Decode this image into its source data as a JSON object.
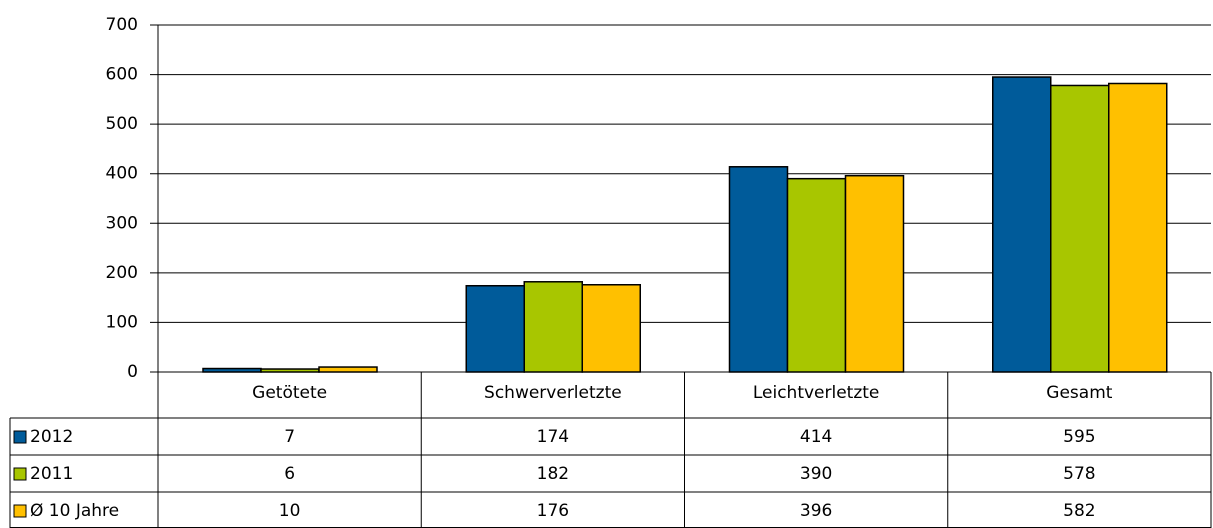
{
  "chart_data": {
    "type": "bar",
    "categories": [
      "Getötete",
      "Schwerverletzte",
      "Leichtverletzte",
      "Gesamt"
    ],
    "series": [
      {
        "name": "2012",
        "color": "#005b9a",
        "values": [
          7,
          174,
          414,
          595
        ]
      },
      {
        "name": "2011",
        "color": "#a8c600",
        "values": [
          6,
          182,
          390,
          578
        ]
      },
      {
        "name": "Ø 10 Jahre",
        "color": "#ffc000",
        "values": [
          10,
          176,
          396,
          582
        ]
      }
    ],
    "ylim": [
      0,
      700
    ],
    "yticks": [
      0,
      100,
      200,
      300,
      400,
      500,
      600,
      700
    ],
    "grid": true
  }
}
